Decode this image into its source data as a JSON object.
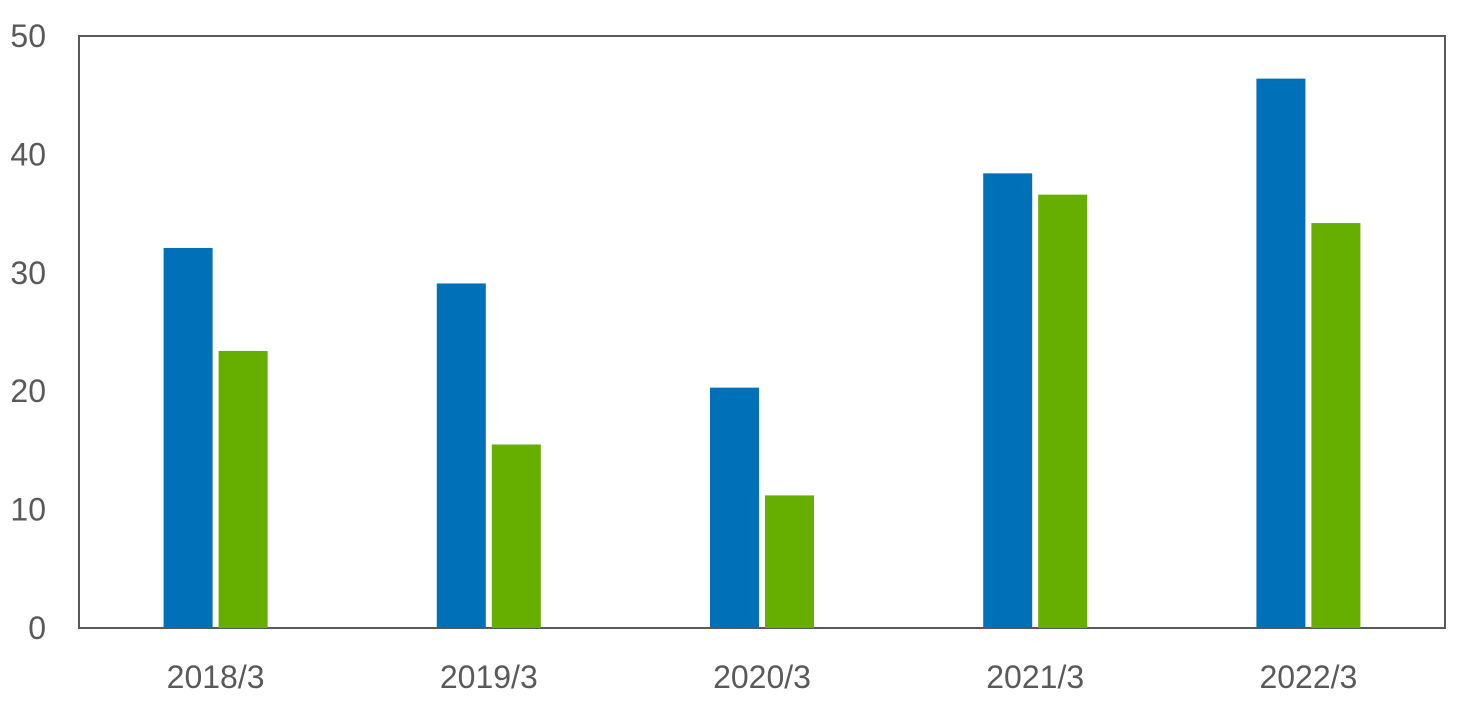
{
  "chart_data": {
    "type": "bar",
    "categories": [
      "2018/3",
      "2019/3",
      "2020/3",
      "2021/3",
      "2022/3"
    ],
    "series": [
      {
        "values": [
          32.1,
          29.1,
          20.3,
          38.4,
          46.4
        ],
        "color": "#0070B8"
      },
      {
        "values": [
          23.4,
          15.5,
          11.2,
          36.6,
          34.2
        ],
        "color": "#66AE00"
      }
    ],
    "ylim": [
      0,
      50
    ],
    "yticks": [
      0,
      10,
      20,
      30,
      40,
      50
    ],
    "grid": false,
    "legend": "none",
    "frame_color": "#595959",
    "tick_label_color": "#595959"
  }
}
